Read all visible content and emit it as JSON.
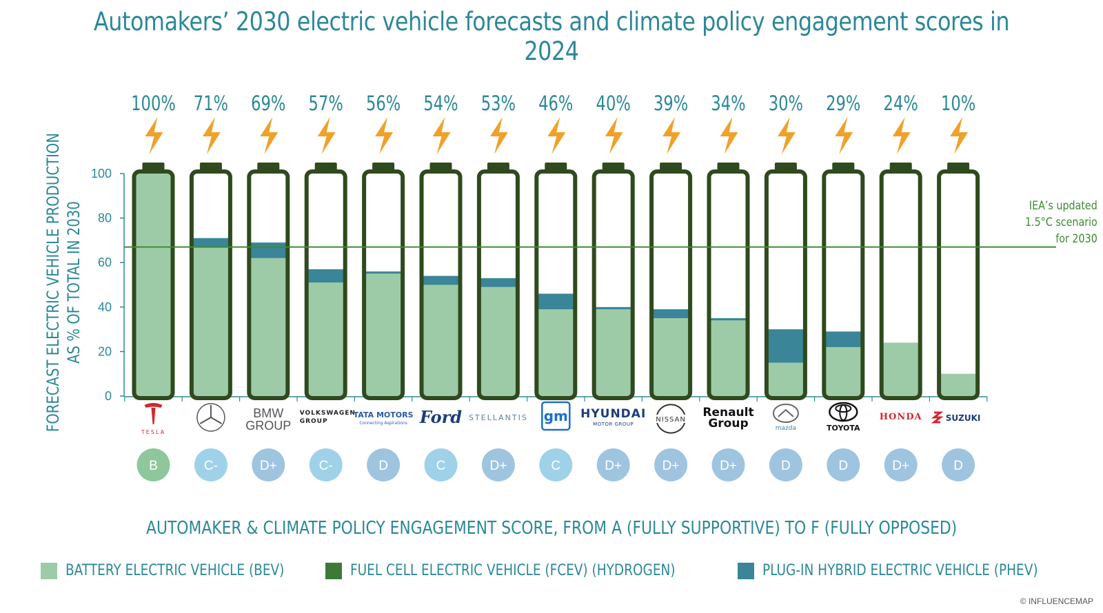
{
  "title": "Automakers’ 2030 electric vehicle forecasts and climate policy engagement scores in 2024",
  "copyright": "© INFLUENCEMAP",
  "chart_data": {
    "type": "bar",
    "stacked": true,
    "title": "Automakers’ 2030 electric vehicle forecasts and climate policy engagement scores in 2024",
    "ylabel_lines": [
      "FORECAST ELECTRIC VEHICLE PRODUCTION",
      "AS % OF TOTAL IN 2030"
    ],
    "xlabel": "AUTOMAKER & CLIMATE POLICY ENGAGEMENT SCORE, FROM A (FULLY SUPPORTIVE) TO F (FULLY OPPOSED)",
    "ylim": [
      0,
      100
    ],
    "yticks": [
      "0",
      "20",
      "40",
      "60",
      "80",
      "100"
    ],
    "grid": false,
    "legend_position": "bottom",
    "reference_line": {
      "value": 67,
      "label_lines": [
        "IEA’s updated",
        "1.5°C scenario",
        "for 2030"
      ]
    },
    "categories": [
      "TESLA",
      "MERCEDES-BENZ",
      "BMW GROUP",
      "VOLKSWAGEN GROUP",
      "TATA MOTORS",
      "Ford",
      "STELLANTIS",
      "gm",
      "HYUNDAI",
      "NISSAN",
      "Renault Group",
      "mazda",
      "TOYOTA",
      "HONDA",
      "SUZUKI"
    ],
    "totals": [
      "100%",
      "71%",
      "69%",
      "57%",
      "56%",
      "54%",
      "53%",
      "46%",
      "40%",
      "39%",
      "34%",
      "30%",
      "29%",
      "24%",
      "10%"
    ],
    "scores": [
      "B",
      "C-",
      "D+",
      "C-",
      "D",
      "C",
      "D+",
      "C",
      "D+",
      "D+",
      "D+",
      "D",
      "D",
      "D+",
      "D"
    ],
    "series": [
      {
        "name": "BATTERY ELECTRIC VEHICLE (BEV)",
        "color": "#9ecba7",
        "values": [
          100,
          67,
          62,
          51,
          55,
          50,
          49,
          39,
          39,
          35,
          34,
          15,
          22,
          24,
          10
        ]
      },
      {
        "name": "FUEL CELL ELECTRIC VEHICLE (FCEV) (HYDROGEN)",
        "color": "#3d7a38",
        "values": [
          0,
          0,
          0,
          0,
          0,
          0,
          0,
          0,
          0,
          0,
          0,
          0,
          0,
          0,
          0
        ]
      },
      {
        "name": "PLUG-IN HYBRID ELECTRIC VEHICLE (PHEV)",
        "color": "#3a8597",
        "values": [
          0,
          4,
          7,
          6,
          1,
          4,
          4,
          7,
          1,
          4,
          1,
          15,
          7,
          0,
          0
        ]
      }
    ]
  },
  "logos": {
    "TESLA": {
      "text": "TESLA",
      "color": "#d0282e"
    },
    "BMW GROUP": {
      "line1": "BMW",
      "line2": "GROUP"
    },
    "VOLKSWAGEN GROUP": {
      "line1": "VOLKSWAGEN",
      "line2": "GROUP"
    },
    "TATA MOTORS": {
      "line1": "TATA MOTORS",
      "line2": "Connecting Aspirations"
    },
    "Ford": {
      "text": "Ford"
    },
    "STELLANTIS": {
      "text": "STELLANTIS"
    },
    "gm": {
      "text": "gm"
    },
    "HYUNDAI": {
      "line1": "HYUNDAI",
      "line2": "MOTOR GROUP"
    },
    "NISSAN": {
      "text": "NISSAN"
    },
    "Renault Group": {
      "line1": "Renault",
      "line2": "Group"
    },
    "mazda": {
      "text": "mazda"
    },
    "TOYOTA": {
      "text": "TOYOTA"
    },
    "HONDA": {
      "text": "HONDA"
    },
    "SUZUKI": {
      "text": "SUZUKI"
    }
  },
  "colors": {
    "accent": "#2b8898",
    "battery_outline": "#2f4a1e",
    "bolt": "#f0a12a",
    "ref_line": "#3c8b33",
    "score_b": "#8fc79c",
    "score_c": "#9fd2e8",
    "score_d": "#9fc4e0"
  }
}
